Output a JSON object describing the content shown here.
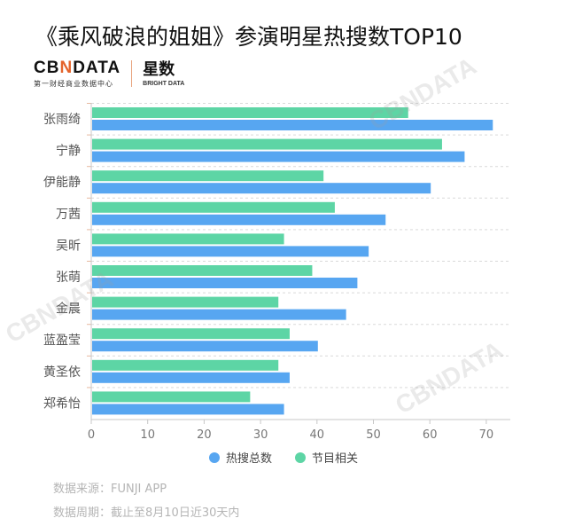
{
  "header": {
    "title": "《乘风破浪的姐姐》参演明星热搜数TOP10",
    "logo_main_left": "CB",
    "logo_main_x": "N",
    "logo_main_right": "DATA",
    "logo_sub": "第一财经商业数据中心",
    "logo_brand": "星数",
    "logo_brand_sub": "BRIGHT DATA"
  },
  "watermarks": [
    "CBNDATA",
    "CBNDATA",
    "CBNDATA"
  ],
  "colors": {
    "total": "#57a6f1",
    "program": "#5dd5a5",
    "grid": "#d9d9d9",
    "axis": "#c7c7c7"
  },
  "legend": [
    {
      "label": "热搜总数",
      "color": "#57a6f1"
    },
    {
      "label": "节目相关",
      "color": "#5dd5a5"
    }
  ],
  "notes": {
    "source": "数据来源：FUNJI APP",
    "period": "数据周期：截止至8月10日近30天内"
  },
  "chart_data": {
    "type": "bar",
    "orientation": "horizontal",
    "title": "《乘风破浪的姐姐》参演明星热搜数TOP10",
    "categories": [
      "张雨绮",
      "宁静",
      "伊能静",
      "万茜",
      "吴昕",
      "张萌",
      "金晨",
      "蓝盈莹",
      "黄圣依",
      "郑希怡"
    ],
    "series": [
      {
        "name": "热搜总数",
        "values": [
          71,
          66,
          60,
          52,
          49,
          47,
          45,
          40,
          35,
          34
        ]
      },
      {
        "name": "节目相关",
        "values": [
          56,
          62,
          41,
          43,
          34,
          39,
          33,
          35,
          33,
          28
        ]
      }
    ],
    "xlabel": "",
    "ylabel": "",
    "xlim": [
      0,
      74
    ],
    "xticks": [
      0,
      10,
      20,
      30,
      40,
      50,
      60,
      70
    ],
    "grid": true,
    "legend_position": "bottom"
  }
}
